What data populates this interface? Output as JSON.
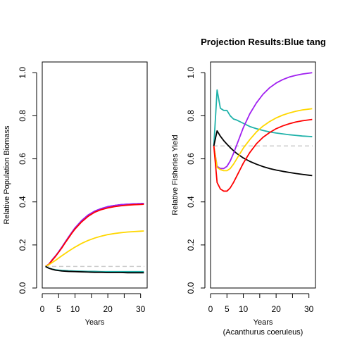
{
  "page_title": "Projection Results:Blue tang",
  "chart_data": [
    {
      "type": "line",
      "title": "",
      "xlabel": "Years",
      "xlabel_sub": "",
      "ylabel": "Relative Population Biomass",
      "xlim": [
        0,
        32
      ],
      "ylim": [
        0,
        1.05
      ],
      "x_ticks": [
        0,
        5,
        10,
        20,
        30
      ],
      "x_minor_ticks": [
        15,
        25
      ],
      "y_ticks": [
        0.0,
        0.2,
        0.4,
        0.6,
        0.8,
        1.0
      ],
      "x_tick_labels": [
        "0",
        "5",
        "10",
        "20",
        "30"
      ],
      "y_tick_labels": [
        "0.0",
        "0.2",
        "0.4",
        "0.6",
        "0.8",
        "1.0"
      ],
      "reference_line": {
        "y": 0.1,
        "color": "#cccccc",
        "style": "dashed"
      },
      "grid": false,
      "series": [
        {
          "color": "#0000ff",
          "x": [
            1,
            2,
            3,
            4,
            5,
            6,
            7,
            8,
            9,
            10,
            12,
            14,
            16,
            18,
            20,
            22,
            24,
            26,
            28,
            30,
            31
          ],
          "y": [
            0.1,
            0.11,
            0.13,
            0.148,
            0.168,
            0.19,
            0.213,
            0.236,
            0.258,
            0.279,
            0.313,
            0.339,
            0.357,
            0.369,
            0.378,
            0.383,
            0.387,
            0.389,
            0.391,
            0.392,
            0.393
          ]
        },
        {
          "color": "#a020f0",
          "x": [
            1,
            2,
            3,
            4,
            5,
            6,
            7,
            8,
            9,
            10,
            12,
            14,
            16,
            18,
            20,
            22,
            24,
            26,
            28,
            30,
            31
          ],
          "y": [
            0.1,
            0.11,
            0.13,
            0.148,
            0.168,
            0.19,
            0.213,
            0.236,
            0.258,
            0.279,
            0.313,
            0.339,
            0.357,
            0.369,
            0.378,
            0.383,
            0.387,
            0.389,
            0.391,
            0.392,
            0.393
          ]
        },
        {
          "color": "#ff0000",
          "x": [
            1,
            2,
            3,
            4,
            5,
            6,
            7,
            8,
            9,
            10,
            12,
            14,
            16,
            18,
            20,
            22,
            24,
            26,
            28,
            30,
            31
          ],
          "y": [
            0.1,
            0.11,
            0.128,
            0.146,
            0.166,
            0.187,
            0.21,
            0.232,
            0.254,
            0.274,
            0.307,
            0.333,
            0.352,
            0.364,
            0.372,
            0.378,
            0.382,
            0.385,
            0.387,
            0.388,
            0.389
          ]
        },
        {
          "color": "#ffd700",
          "x": [
            1,
            2,
            3,
            4,
            5,
            6,
            8,
            10,
            12,
            14,
            16,
            18,
            20,
            22,
            24,
            26,
            28,
            30,
            31
          ],
          "y": [
            0.1,
            0.108,
            0.118,
            0.128,
            0.139,
            0.15,
            0.171,
            0.19,
            0.207,
            0.221,
            0.232,
            0.241,
            0.248,
            0.253,
            0.257,
            0.26,
            0.262,
            0.264,
            0.265
          ]
        },
        {
          "color": "#20b2aa",
          "x": [
            1,
            2,
            3,
            4,
            5,
            6,
            8,
            10,
            12,
            14,
            16,
            18,
            20,
            22,
            24,
            26,
            28,
            30,
            31
          ],
          "y": [
            0.1,
            0.092,
            0.088,
            0.085,
            0.083,
            0.082,
            0.08,
            0.079,
            0.078,
            0.077,
            0.077,
            0.076,
            0.076,
            0.076,
            0.076,
            0.076,
            0.076,
            0.076,
            0.076
          ]
        },
        {
          "color": "#000000",
          "x": [
            1,
            2,
            3,
            4,
            5,
            6,
            8,
            10,
            12,
            14,
            16,
            18,
            20,
            22,
            24,
            26,
            28,
            30,
            31
          ],
          "y": [
            0.1,
            0.092,
            0.087,
            0.083,
            0.081,
            0.079,
            0.077,
            0.076,
            0.075,
            0.074,
            0.073,
            0.073,
            0.072,
            0.072,
            0.072,
            0.071,
            0.071,
            0.071,
            0.071
          ]
        }
      ]
    },
    {
      "type": "line",
      "title": "",
      "xlabel": "Years",
      "xlabel_sub": "(Acanthurus coeruleus)",
      "ylabel": "Relative Fisheries Yield",
      "xlim": [
        0,
        32
      ],
      "ylim": [
        0,
        1.05
      ],
      "x_ticks": [
        0,
        5,
        10,
        20,
        30
      ],
      "x_minor_ticks": [
        15,
        25
      ],
      "y_ticks": [
        0.0,
        0.2,
        0.4,
        0.6,
        0.8,
        1.0
      ],
      "x_tick_labels": [
        "0",
        "5",
        "10",
        "20",
        "30"
      ],
      "y_tick_labels": [
        "0.0",
        "0.2",
        "0.4",
        "0.6",
        "0.8",
        "1.0"
      ],
      "reference_line": {
        "y": 0.66,
        "color": "#cccccc",
        "style": "dashed"
      },
      "grid": false,
      "series": [
        {
          "color": "#20b2aa",
          "x": [
            1,
            2,
            3,
            4,
            5,
            6,
            7,
            8,
            10,
            12,
            14,
            16,
            18,
            20,
            22,
            24,
            26,
            28,
            30,
            31
          ],
          "y": [
            0.66,
            0.92,
            0.835,
            0.825,
            0.825,
            0.8,
            0.785,
            0.78,
            0.765,
            0.75,
            0.74,
            0.732,
            0.725,
            0.72,
            0.716,
            0.712,
            0.709,
            0.706,
            0.704,
            0.703
          ]
        },
        {
          "color": "#000000",
          "x": [
            1,
            2,
            3,
            4,
            5,
            6,
            7,
            8,
            10,
            12,
            14,
            16,
            18,
            20,
            22,
            24,
            26,
            28,
            30,
            31
          ],
          "y": [
            0.66,
            0.73,
            0.705,
            0.685,
            0.668,
            0.652,
            0.638,
            0.625,
            0.604,
            0.588,
            0.575,
            0.564,
            0.555,
            0.548,
            0.542,
            0.537,
            0.532,
            0.528,
            0.524,
            0.522
          ]
        },
        {
          "color": "#a020f0",
          "x": [
            1,
            2,
            3,
            4,
            5,
            6,
            7,
            8,
            9,
            10,
            12,
            14,
            16,
            18,
            20,
            22,
            24,
            26,
            28,
            30,
            31
          ],
          "y": [
            0.66,
            0.565,
            0.555,
            0.555,
            0.565,
            0.59,
            0.625,
            0.665,
            0.705,
            0.745,
            0.81,
            0.86,
            0.9,
            0.93,
            0.952,
            0.968,
            0.98,
            0.988,
            0.994,
            0.998,
            1.0
          ]
        },
        {
          "color": "#ffd700",
          "x": [
            1,
            2,
            3,
            4,
            5,
            6,
            7,
            8,
            9,
            10,
            12,
            14,
            16,
            18,
            20,
            22,
            24,
            26,
            28,
            30,
            31
          ],
          "y": [
            0.66,
            0.56,
            0.55,
            0.545,
            0.545,
            0.555,
            0.575,
            0.6,
            0.625,
            0.65,
            0.69,
            0.725,
            0.752,
            0.773,
            0.79,
            0.803,
            0.813,
            0.821,
            0.827,
            0.831,
            0.833
          ]
        },
        {
          "color": "#ff0000",
          "x": [
            1,
            2,
            3,
            4,
            5,
            6,
            7,
            8,
            9,
            10,
            12,
            14,
            16,
            18,
            20,
            22,
            24,
            26,
            28,
            30,
            31
          ],
          "y": [
            0.66,
            0.49,
            0.46,
            0.45,
            0.45,
            0.465,
            0.49,
            0.52,
            0.55,
            0.58,
            0.63,
            0.67,
            0.7,
            0.722,
            0.74,
            0.753,
            0.763,
            0.771,
            0.777,
            0.781,
            0.783
          ]
        }
      ]
    }
  ]
}
